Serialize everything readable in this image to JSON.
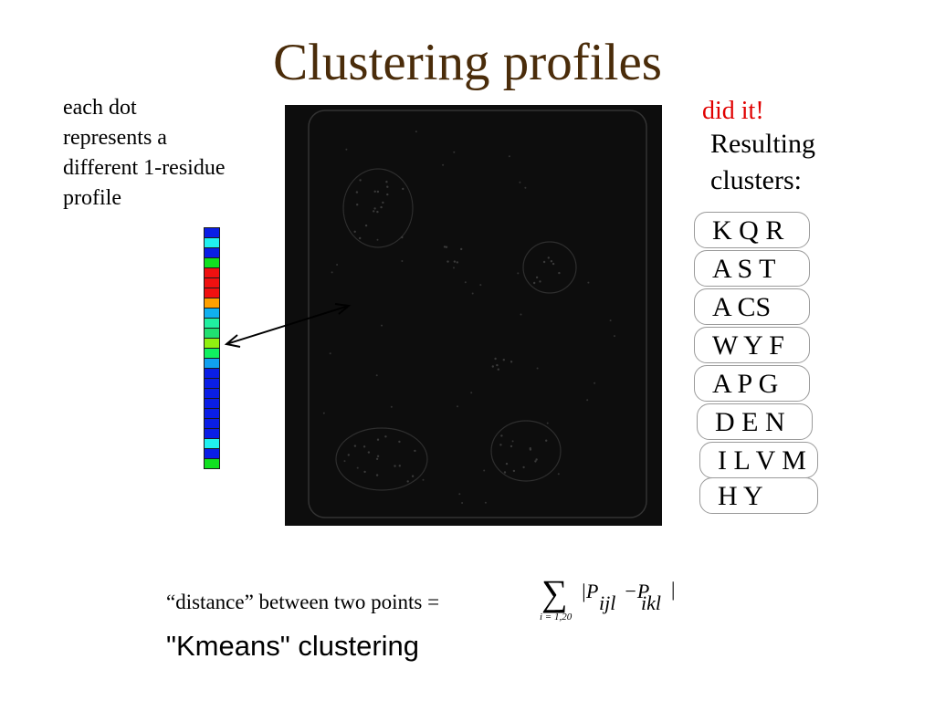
{
  "title": "Clustering profiles",
  "caption": "each dot\nrepresents a\ndifferent 1-residue\nprofile",
  "status_note": "did it!",
  "clusters_heading": "Resulting\nclusters:",
  "clusters": [
    "K Q R",
    "A S T",
    "A CS",
    "W Y F",
    "A P G",
    "D E N",
    "I L V M",
    "H Y"
  ],
  "distance_text": "“distance” between two points =",
  "method_text": "\"Kmeans\" clustering",
  "formula": {
    "sum_symbol": "∑",
    "subscript": "i = 1,20",
    "expression": "|P",
    "sub1": "ijl",
    "minus": "−P",
    "sub2": "ikl",
    "close": "|"
  },
  "profile_colors": [
    "#0a1ee6",
    "#20f0f0",
    "#0a1ee6",
    "#10e020",
    "#f01010",
    "#f01010",
    "#f01010",
    "#ffa000",
    "#10b0f0",
    "#20f0a0",
    "#20e070",
    "#90f010",
    "#10f060",
    "#10a0f0",
    "#0a1ee6",
    "#0a1ee6",
    "#0a1ee6",
    "#0a1ee6",
    "#0a1ee6",
    "#0a1ee6",
    "#0a1ee6",
    "#20f0f0",
    "#0a1ee6",
    "#10e020"
  ],
  "colors": {
    "title": "#4a2c0a",
    "status": "#e00000",
    "scatter_bg": "#0d0d0d"
  }
}
